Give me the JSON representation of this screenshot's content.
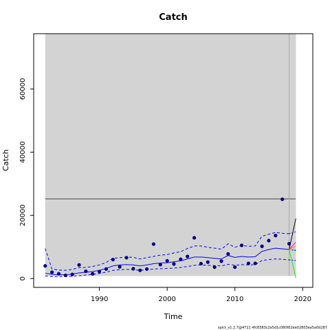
{
  "chart_data": {
    "type": "line",
    "title": "Catch",
    "xlabel": "Time",
    "ylabel": "Catch",
    "xlim": [
      1980.3,
      2021.5
    ],
    "ylim": [
      -2800,
      77500
    ],
    "x_ticks": [
      1990,
      2000,
      2010,
      2020
    ],
    "x_tick_labels": [
      "1990",
      "2000",
      "2010",
      "2020"
    ],
    "y_ticks": [
      0,
      20000,
      40000,
      60000
    ],
    "y_tick_labels": [
      "0",
      "20000",
      "40000",
      "60000"
    ],
    "shaded_region": {
      "x": [
        1982,
        2019
      ],
      "y": [
        800,
        77500
      ],
      "color": "#d3d3d3"
    },
    "reference_line": {
      "y": 25200,
      "x": [
        1982,
        2019
      ],
      "color": "#555555"
    },
    "vertical_line": {
      "x": 2018,
      "color": "#aaaaaa"
    },
    "observed": {
      "color": "#00008b",
      "points": [
        [
          1982,
          4000
        ],
        [
          1983,
          2000
        ],
        [
          1984,
          1500
        ],
        [
          1985,
          1000
        ],
        [
          1986,
          1300
        ],
        [
          1987,
          4300
        ],
        [
          1988,
          2300
        ],
        [
          1989,
          1500
        ],
        [
          1990,
          2200
        ],
        [
          1991,
          3000
        ],
        [
          1992,
          6000
        ],
        [
          1993,
          3700
        ],
        [
          1994,
          6600
        ],
        [
          1995,
          3100
        ],
        [
          1996,
          2600
        ],
        [
          1997,
          3000
        ],
        [
          1998,
          10900
        ],
        [
          1999,
          4400
        ],
        [
          2000,
          5600
        ],
        [
          2001,
          4600
        ],
        [
          2002,
          6100
        ],
        [
          2003,
          7000
        ],
        [
          2004,
          12900
        ],
        [
          2005,
          4700
        ],
        [
          2006,
          5200
        ],
        [
          2007,
          3600
        ],
        [
          2008,
          5500
        ],
        [
          2009,
          7800
        ],
        [
          2010,
          3600
        ],
        [
          2011,
          10500
        ],
        [
          2012,
          4800
        ],
        [
          2013,
          4800
        ],
        [
          2014,
          10200
        ],
        [
          2015,
          12000
        ],
        [
          2016,
          13600
        ],
        [
          2017,
          25100
        ],
        [
          2018,
          11000
        ]
      ]
    },
    "estimate": {
      "color": "#0000ff",
      "x": [
        1982,
        1983,
        1984,
        1985,
        1986,
        1987,
        1988,
        1989,
        1990,
        1991,
        1992,
        1993,
        1994,
        1995,
        1996,
        1997,
        1998,
        1999,
        2000,
        2001,
        2002,
        2003,
        2004,
        2005,
        2006,
        2007,
        2008,
        2009,
        2010,
        2011,
        2012,
        2013,
        2014,
        2015,
        2016,
        2017,
        2018
      ],
      "mid": [
        1700,
        1300,
        1200,
        1200,
        1400,
        1800,
        2000,
        2200,
        2600,
        3200,
        4000,
        4300,
        4400,
        4300,
        4000,
        4300,
        4700,
        4900,
        5000,
        5300,
        5600,
        6200,
        6800,
        6800,
        6600,
        6400,
        6200,
        7300,
        6700,
        7000,
        6800,
        6900,
        8600,
        9200,
        9600,
        9400,
        9200
      ],
      "lower": [
        800,
        600,
        600,
        600,
        700,
        900,
        1100,
        1300,
        1600,
        2000,
        2600,
        2800,
        2900,
        2800,
        2600,
        2800,
        3000,
        3100,
        3200,
        3300,
        3500,
        3800,
        4200,
        4300,
        4200,
        4100,
        4000,
        4500,
        4200,
        4400,
        4300,
        4400,
        5700,
        6000,
        6200,
        6100,
        5900
      ],
      "upper": [
        9500,
        3000,
        2700,
        2600,
        2900,
        3400,
        3500,
        3800,
        4300,
        5100,
        6400,
        6600,
        6800,
        6700,
        6200,
        6600,
        7000,
        7400,
        7600,
        8100,
        8500,
        9500,
        10300,
        10300,
        9900,
        9600,
        9300,
        11000,
        9900,
        10500,
        10200,
        10300,
        13400,
        14000,
        14600,
        14300,
        14200
      ]
    },
    "forecast": {
      "estimate": {
        "color": "#0000ff",
        "x": [
          2018,
          2019
        ],
        "mid": [
          9200,
          8800
        ],
        "lower": [
          5900,
          5700
        ],
        "upper": [
          14200,
          14800
        ]
      },
      "scenarios": [
        {
          "color": "#000000",
          "x": [
            2018,
            2019
          ],
          "values": [
            9200,
            19000
          ]
        },
        {
          "color": "#00ff00",
          "x": [
            2018,
            2019
          ],
          "values": [
            9200,
            200
          ]
        },
        {
          "color": "#ff00ff",
          "x": [
            2018,
            2019
          ],
          "values": [
            9200,
            11500
          ]
        },
        {
          "color": "#ff7f00",
          "x": [
            2018,
            2019
          ],
          "values": [
            9200,
            10300
          ]
        },
        {
          "color": "#00bfff",
          "x": [
            2018,
            2019
          ],
          "values": [
            9200,
            9000
          ]
        },
        {
          "color": "#aaaaaa",
          "x": [
            2018,
            2019
          ],
          "values": [
            9200,
            9200
          ]
        }
      ]
    },
    "footnote": "spict_v1.2.7@4711 4fc8383c2a5d1c080f02ee02803ea5a0d287",
    "grid": false
  }
}
